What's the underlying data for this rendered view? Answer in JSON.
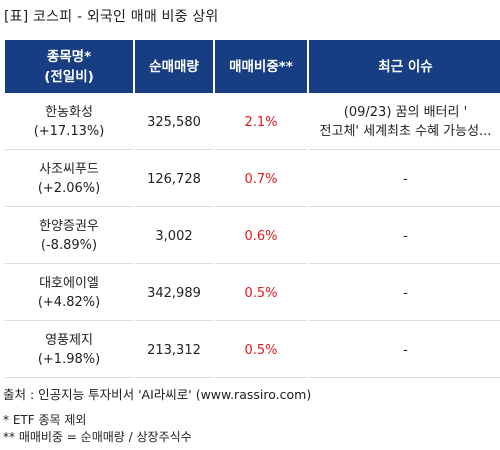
{
  "title": "[표] 코스피 - 외국인 매매 비중 상위",
  "headers": {
    "name_line1": "종목명*",
    "name_line2": "(전일비)",
    "volume": "순매매량",
    "ratio": "매매비중**",
    "issue": "최근 이슈"
  },
  "rows": [
    {
      "name": "한농화성",
      "change": "(+17.13%)",
      "volume": "325,580",
      "ratio": "2.1%",
      "issue_line1": "(09/23) 꿈의 배터리 '",
      "issue_line2": "전고체' 세계최초 수혜 가능성..."
    },
    {
      "name": "사조씨푸드",
      "change": "(+2.06%)",
      "volume": "126,728",
      "ratio": "0.7%",
      "issue_line1": "-",
      "issue_line2": ""
    },
    {
      "name": "한양증권우",
      "change": "(-8.89%)",
      "volume": "3,002",
      "ratio": "0.6%",
      "issue_line1": "-",
      "issue_line2": ""
    },
    {
      "name": "대호에이엘",
      "change": "(+4.82%)",
      "volume": "342,989",
      "ratio": "0.5%",
      "issue_line1": "-",
      "issue_line2": ""
    },
    {
      "name": "영풍제지",
      "change": "(+1.98%)",
      "volume": "213,312",
      "ratio": "0.5%",
      "issue_line1": "-",
      "issue_line2": ""
    }
  ],
  "footer": {
    "source": "출처 : 인공지능 투자비서 'AI라씨로' (www.rassiro.com)",
    "note1": "* ETF 종목 제외",
    "note2": "** 매매비중 = 순매매량 / 상장주식수"
  },
  "colors": {
    "header_bg": "#173e83",
    "ratio_text": "#e11b1b"
  }
}
